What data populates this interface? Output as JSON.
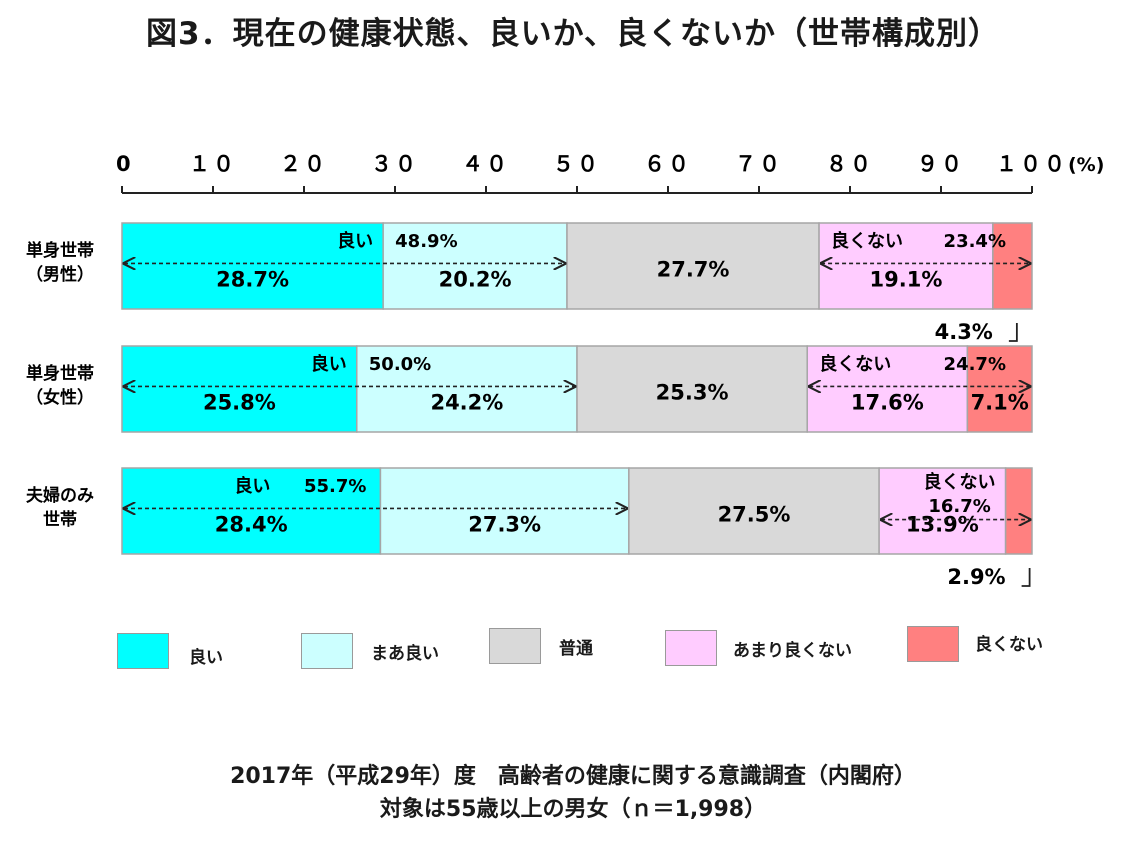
{
  "title": "図3．現在の健康状態、良いか、良くないか（世帯構成別）",
  "chart_data": {
    "type": "bar",
    "orientation": "horizontal",
    "stacked": true,
    "axis": {
      "min": 0,
      "max": 100,
      "ticks": [
        {
          "value": 0,
          "label": "0"
        },
        {
          "value": 10,
          "label": "１０"
        },
        {
          "value": 20,
          "label": "２０"
        },
        {
          "value": 30,
          "label": "３０"
        },
        {
          "value": 40,
          "label": "４０"
        },
        {
          "value": 50,
          "label": "５０"
        },
        {
          "value": 60,
          "label": "６０"
        },
        {
          "value": 70,
          "label": "７０"
        },
        {
          "value": 80,
          "label": "８０"
        },
        {
          "value": 90,
          "label": "９０"
        },
        {
          "value": 100,
          "label": "１００"
        }
      ],
      "unit": "(%)",
      "position": "top"
    },
    "categories": [
      {
        "line1": "単身世帯",
        "line2": "（男性）"
      },
      {
        "line1": "単身世帯",
        "line2": "（女性）"
      },
      {
        "line1": "夫婦のみ",
        "line2": "世帯"
      }
    ],
    "series": [
      {
        "name": "良い",
        "color": "#00ffff",
        "values": [
          28.7,
          25.8,
          28.4
        ],
        "labels": [
          "28.7%",
          "25.8%",
          "28.4%"
        ]
      },
      {
        "name": "まあ良い",
        "color": "#ccffff",
        "values": [
          20.2,
          24.2,
          27.3
        ],
        "labels": [
          "20.2%",
          "24.2%",
          "27.3%"
        ]
      },
      {
        "name": "普通",
        "color": "#d9d9d9",
        "values": [
          27.7,
          25.3,
          27.5
        ],
        "labels": [
          "27.7%",
          "25.3%",
          "27.5%"
        ]
      },
      {
        "name": "あまり良くない",
        "color": "#ffccff",
        "values": [
          19.1,
          17.6,
          13.9
        ],
        "labels": [
          "19.1%",
          "17.6%",
          "13.9%"
        ]
      },
      {
        "name": "良くない",
        "color": "#ff8080",
        "values": [
          4.3,
          7.1,
          2.9
        ],
        "labels": [
          "4.3%",
          "7.1%",
          "2.9%"
        ]
      }
    ],
    "good_group": {
      "label": "良い",
      "totals": [
        "48.9%",
        "50.0%",
        "55.7%"
      ]
    },
    "bad_group": {
      "label": "良くない",
      "totals": [
        "23.4%",
        "24.7%",
        "16.7%"
      ]
    },
    "legend_position": "bottom",
    "grid": false
  },
  "source": {
    "line1": "2017年（平成29年）度　高齢者の健康に関する意識調査（内閣府）",
    "line2": "対象は55歳以上の男女（ｎ＝1,998）"
  }
}
